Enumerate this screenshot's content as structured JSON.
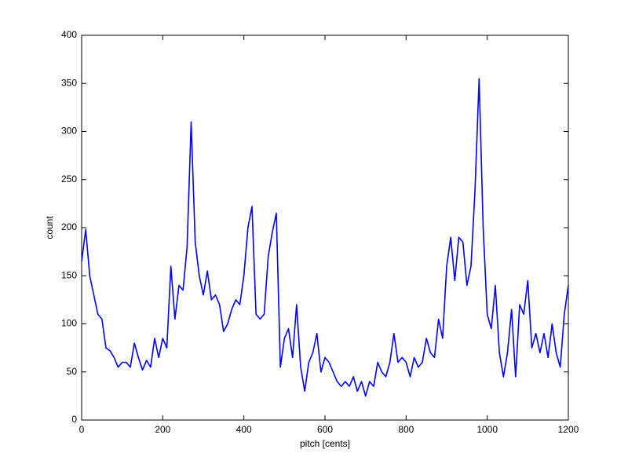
{
  "chart_data": {
    "type": "line",
    "xlabel": "pitch [cents]",
    "ylabel": "count",
    "x": [
      0,
      10,
      20,
      30,
      40,
      50,
      60,
      70,
      80,
      90,
      100,
      110,
      120,
      130,
      140,
      150,
      160,
      170,
      180,
      190,
      200,
      210,
      220,
      230,
      240,
      250,
      260,
      270,
      280,
      290,
      300,
      310,
      320,
      330,
      340,
      350,
      360,
      370,
      380,
      390,
      400,
      410,
      420,
      430,
      440,
      450,
      460,
      470,
      480,
      490,
      500,
      510,
      520,
      530,
      540,
      550,
      560,
      570,
      580,
      590,
      600,
      610,
      620,
      630,
      640,
      650,
      660,
      670,
      680,
      690,
      700,
      710,
      720,
      730,
      740,
      750,
      760,
      770,
      780,
      790,
      800,
      810,
      820,
      830,
      840,
      850,
      860,
      870,
      880,
      890,
      900,
      910,
      920,
      930,
      940,
      950,
      960,
      970,
      980,
      990,
      1000,
      1010,
      1020,
      1030,
      1040,
      1050,
      1060,
      1070,
      1080,
      1090,
      1100,
      1110,
      1120,
      1130,
      1140,
      1150,
      1160,
      1170,
      1180,
      1190,
      1200
    ],
    "values": [
      165,
      198,
      150,
      130,
      110,
      105,
      75,
      72,
      65,
      55,
      60,
      60,
      55,
      80,
      65,
      52,
      62,
      55,
      85,
      65,
      85,
      75,
      160,
      105,
      140,
      135,
      180,
      310,
      185,
      150,
      130,
      155,
      125,
      130,
      120,
      92,
      100,
      115,
      125,
      120,
      150,
      200,
      222,
      110,
      105,
      110,
      170,
      195,
      215,
      55,
      85,
      95,
      65,
      120,
      55,
      30,
      60,
      70,
      90,
      50,
      65,
      60,
      50,
      40,
      35,
      40,
      35,
      45,
      30,
      40,
      25,
      40,
      35,
      60,
      50,
      45,
      60,
      90,
      60,
      65,
      60,
      45,
      65,
      55,
      60,
      85,
      70,
      65,
      105,
      85,
      160,
      190,
      145,
      190,
      185,
      140,
      160,
      240,
      355,
      200,
      110,
      95,
      140,
      70,
      45,
      70,
      115,
      45,
      120,
      110,
      145,
      75,
      90,
      70,
      90,
      65,
      100,
      70,
      55,
      110,
      140
    ],
    "color": "#0000ff",
    "xlim": [
      0,
      1200
    ],
    "xticks": [
      0,
      200,
      400,
      600,
      800,
      1000,
      1200
    ],
    "ylim": [
      0,
      400
    ],
    "yticks": [
      0,
      50,
      100,
      150,
      200,
      250,
      300,
      350,
      400
    ],
    "grid": false
  }
}
